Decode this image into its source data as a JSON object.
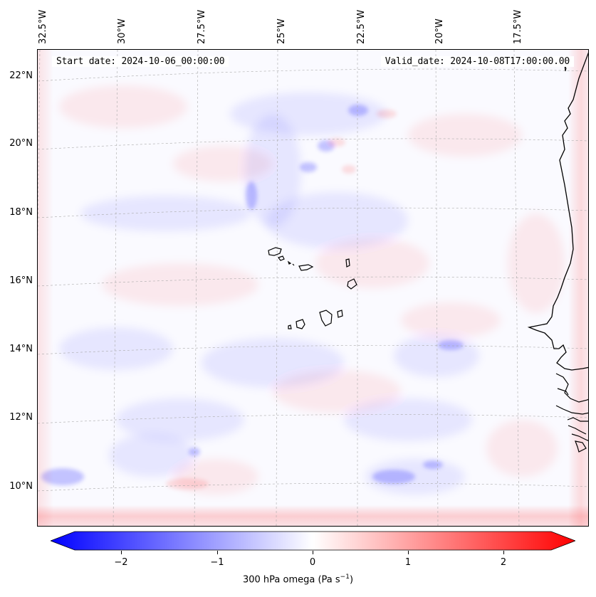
{
  "map": {
    "start_date": "Start date: 2024-10-06_00:00:00",
    "valid_date": "Valid_date: 2024-10-08T17:00:00.00",
    "lon_labels": [
      "32.5°W",
      "30°W",
      "27.5°W",
      "25°W",
      "22.5°W",
      "20°W",
      "17.5°W"
    ],
    "lat_labels": [
      "22°N",
      "20°N",
      "18°N",
      "16°N",
      "14°N",
      "12°N",
      "10°N"
    ],
    "colors": {
      "negative": "#0000ff",
      "zero": "#ffffff",
      "positive": "#ff0000",
      "coast": "#000000",
      "grid": "#bbbbbb"
    }
  },
  "colorbar": {
    "ticks": [
      "−2",
      "−1",
      "0",
      "1",
      "2"
    ],
    "label": "300 hPa omega (Pa s",
    "label_sup": "−1",
    "label_end": ")",
    "range": [
      -2.75,
      2.75
    ]
  }
}
